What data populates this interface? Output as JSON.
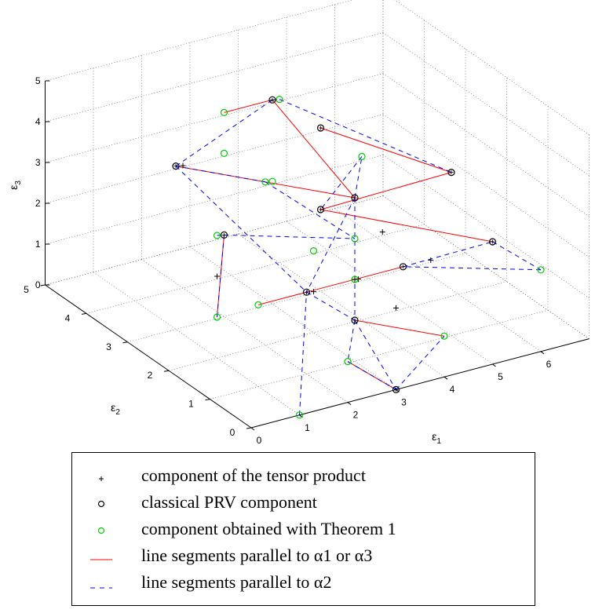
{
  "chart_data": {
    "type": "scatter",
    "title": "",
    "xlabel": "ε1",
    "ylabel": "ε2",
    "zlabel": "ε3",
    "xlim": [
      0,
      7
    ],
    "ylim": [
      0,
      5
    ],
    "zlim": [
      0,
      5
    ],
    "x_ticks": [
      "0",
      "1",
      "2",
      "3",
      "4",
      "5",
      "6"
    ],
    "y_ticks": [
      "0",
      "1",
      "2",
      "3",
      "4",
      "5"
    ],
    "z_ticks": [
      "0",
      "1",
      "2",
      "3",
      "4",
      "5"
    ],
    "grid": true,
    "legend_position": "below",
    "series": [
      {
        "name": "component of the tensor product",
        "marker": "plus",
        "color": "#000000",
        "points": [
          [
            2,
            4,
            3
          ],
          [
            1,
            2,
            2
          ],
          [
            3,
            1,
            2
          ],
          [
            3.5,
            1.5,
            1.5
          ],
          [
            3,
            2,
            1
          ],
          [
            4,
            1.5,
            2.5
          ],
          [
            5,
            1.5,
            1.5
          ],
          [
            3,
            0,
            2
          ]
        ]
      },
      {
        "name": "classical PRV component",
        "marker": "circle",
        "color": "#000000",
        "points": [
          [
            3,
            3,
            5
          ],
          [
            1,
            3,
            4
          ],
          [
            3,
            1,
            4
          ],
          [
            5,
            1,
            4
          ],
          [
            4,
            3,
            4
          ],
          [
            4,
            3,
            2
          ],
          [
            5,
            0,
            3
          ],
          [
            2,
            3,
            2
          ],
          [
            2,
            1,
            2
          ],
          [
            4,
            1,
            2
          ],
          [
            3,
            1,
            1
          ],
          [
            3,
            0,
            0
          ]
        ]
      },
      {
        "name": "component obtained with Theorem 1",
        "marker": "circle",
        "color": "#00cc00",
        "points": [
          [
            2,
            3,
            5
          ],
          [
            2,
            3,
            4
          ],
          [
            4,
            4,
            4
          ],
          [
            2,
            2,
            4
          ],
          [
            4,
            2,
            4
          ],
          [
            3,
            1,
            3
          ],
          [
            1,
            2,
            3
          ],
          [
            3,
            3,
            3
          ],
          [
            3,
            2,
            2
          ],
          [
            1,
            1,
            2
          ],
          [
            3,
            1,
            2
          ],
          [
            1,
            2,
            1
          ],
          [
            2,
            0,
            1
          ],
          [
            4,
            0,
            1
          ],
          [
            1,
            0,
            0
          ],
          [
            6,
            0,
            2
          ]
        ]
      },
      {
        "name": "line segments parallel to α1 or α3",
        "line": "solid",
        "color": "#ff0000",
        "segments": [
          [
            [
              2,
              3,
              5
            ],
            [
              3,
              3,
              5
            ]
          ],
          [
            [
              3,
              3,
              5
            ],
            [
              3,
              1,
              4
            ]
          ],
          [
            [
              1,
              3,
              4
            ],
            [
              3,
              1,
              4
            ]
          ],
          [
            [
              4,
              3,
              4
            ],
            [
              5,
              1,
              4
            ]
          ],
          [
            [
              5,
              1,
              4
            ],
            [
              4,
              3,
              2
            ]
          ],
          [
            [
              4,
              3,
              2
            ],
            [
              5,
              0,
              3
            ]
          ],
          [
            [
              1,
              1,
              2
            ],
            [
              2,
              1,
              2
            ]
          ],
          [
            [
              2,
              1,
              2
            ],
            [
              4,
              1,
              2
            ]
          ],
          [
            [
              3,
              1,
              1
            ],
            [
              4,
              0,
              1
            ]
          ],
          [
            [
              2,
              0,
              1
            ],
            [
              3,
              0,
              0
            ]
          ],
          [
            [
              1,
              2,
              1
            ],
            [
              2,
              3,
              2
            ]
          ]
        ]
      },
      {
        "name": "line segments parallel to α2",
        "line": "dashed",
        "color": "#0000ff",
        "segments": [
          [
            [
              3,
              3,
              5
            ],
            [
              4,
              4,
              4
            ]
          ],
          [
            [
              4,
              4,
              4
            ],
            [
              5,
              1,
              4
            ]
          ],
          [
            [
              1,
              3,
              4
            ],
            [
              3,
              3,
              5
            ]
          ],
          [
            [
              1,
              3,
              4
            ],
            [
              2,
              2,
              4
            ]
          ],
          [
            [
              3,
              1,
              4
            ],
            [
              4,
              2,
              4
            ]
          ],
          [
            [
              2,
              2,
              4
            ],
            [
              3,
              1,
              3
            ]
          ],
          [
            [
              4,
              2,
              4
            ],
            [
              4,
              3,
              2
            ]
          ],
          [
            [
              1,
              3,
              4
            ],
            [
              2,
              1,
              2
            ]
          ],
          [
            [
              3,
              1,
              4
            ],
            [
              2,
              1,
              2
            ]
          ],
          [
            [
              3,
              1,
              4
            ],
            [
              3,
              1,
              1
            ]
          ],
          [
            [
              2,
              3,
              2
            ],
            [
              3,
              1,
              3
            ]
          ],
          [
            [
              2,
              1,
              2
            ],
            [
              3,
              1,
              1
            ]
          ],
          [
            [
              4,
              1,
              2
            ],
            [
              5,
              0,
              3
            ]
          ],
          [
            [
              5,
              0,
              3
            ],
            [
              6,
              0,
              2
            ]
          ],
          [
            [
              6,
              0,
              2
            ],
            [
              4,
              1,
              2
            ]
          ],
          [
            [
              3,
              1,
              1
            ],
            [
              2,
              0,
              1
            ]
          ],
          [
            [
              3,
              1,
              1
            ],
            [
              3,
              0,
              0
            ]
          ],
          [
            [
              2,
              0,
              1
            ],
            [
              3,
              0,
              0
            ]
          ],
          [
            [
              3,
              0,
              0
            ],
            [
              4,
              0,
              1
            ]
          ],
          [
            [
              1,
              2,
              1
            ],
            [
              2,
              3,
              2
            ]
          ],
          [
            [
              1,
              2,
              3
            ],
            [
              2,
              3,
              2
            ]
          ],
          [
            [
              1,
              0,
              0
            ],
            [
              2,
              1,
              2
            ]
          ]
        ]
      }
    ]
  },
  "legend": {
    "items": [
      {
        "symbol": "plus",
        "label": "component of the tensor product"
      },
      {
        "symbol": "circle-black",
        "label": "classical PRV component"
      },
      {
        "symbol": "circle-green",
        "label": "component obtained with Theorem 1"
      },
      {
        "symbol": "line-red",
        "label": "line segments parallel to α1 or α3"
      },
      {
        "symbol": "line-blue-dashed",
        "label": "line segments parallel to α2"
      }
    ]
  }
}
